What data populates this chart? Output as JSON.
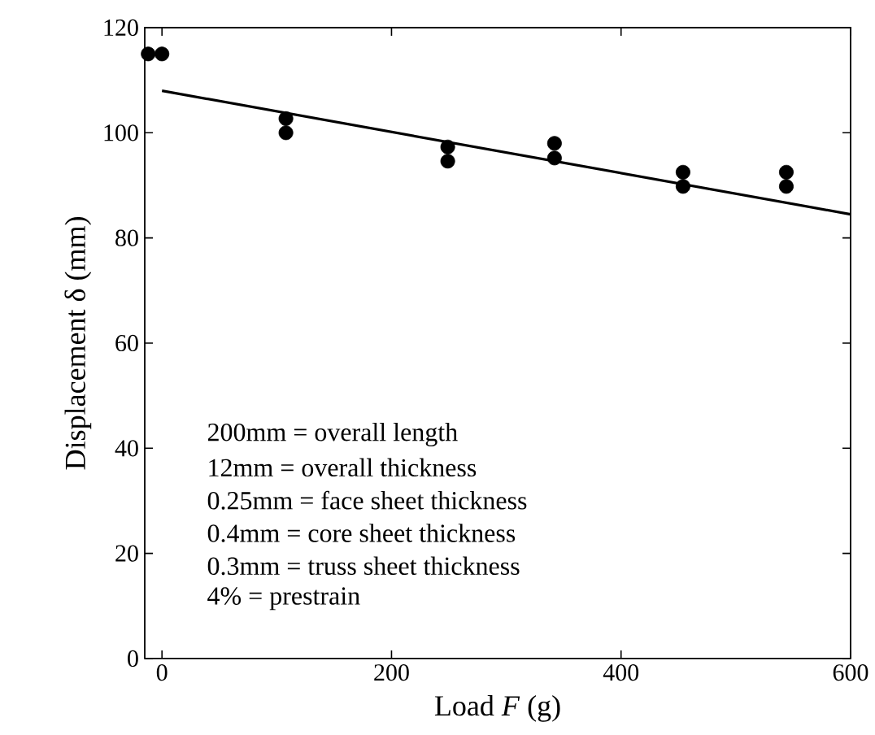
{
  "chart_data": {
    "type": "scatter",
    "xlabel": "Load *F*  (g)",
    "ylabel": "Displacement  δ  (mm)",
    "xlim": [
      -15,
      600
    ],
    "ylim": [
      0,
      120
    ],
    "xticks": [
      0,
      200,
      400,
      600
    ],
    "yticks": [
      0,
      20,
      40,
      60,
      80,
      100,
      120
    ],
    "grid": false,
    "series": [
      {
        "marker": "circle",
        "color": "#000000",
        "x": [
          -12,
          0,
          108,
          108,
          249,
          249,
          342,
          342,
          454,
          454,
          544,
          544
        ],
        "values": [
          115,
          115,
          102.7,
          100,
          97.3,
          94.6,
          98,
          95.2,
          92.5,
          89.8,
          92.5,
          89.8
        ]
      },
      {
        "type": "line",
        "color": "#000000",
        "marker": "none",
        "line_style": "solid",
        "x": [
          0,
          600
        ],
        "values": [
          108,
          84.5
        ]
      }
    ],
    "annotations": [
      "200mm  = overall length",
      "12mm  = overall thickness",
      "0.25mm  = face sheet thickness",
      "0.4mm  = core sheet thickness",
      "0.3mm  = truss sheet thickness",
      "4%  = prestrain"
    ]
  }
}
